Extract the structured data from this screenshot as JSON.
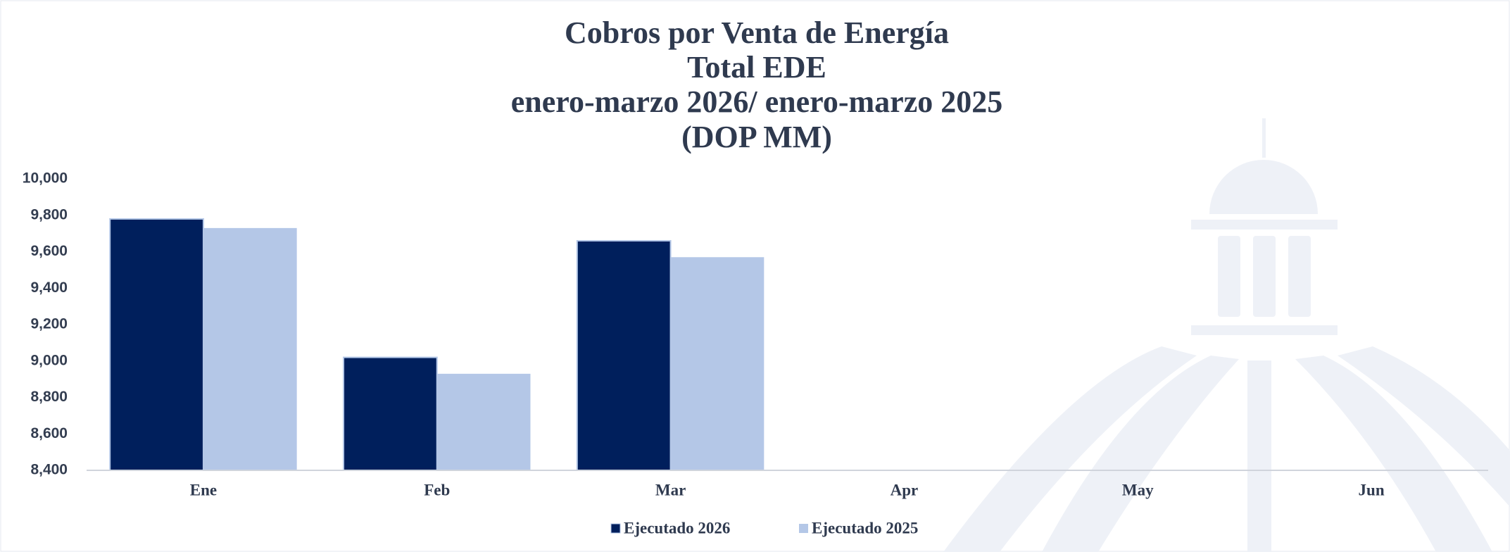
{
  "chart_data": {
    "type": "bar",
    "title": [
      "Cobros por Venta de Energía",
      "Total EDE",
      "enero-marzo 2026/ enero-marzo 2025",
      "(DOP MM)"
    ],
    "categories": [
      "Ene",
      "Feb",
      "Mar",
      "Apr",
      "May",
      "Jun"
    ],
    "series": [
      {
        "name": "Ejecutado 2026",
        "color": "#001f5c",
        "values": [
          9780,
          9020,
          9660,
          null,
          null,
          null
        ]
      },
      {
        "name": "Ejecutado 2025",
        "color": "#b4c7e7",
        "values": [
          9730,
          8930,
          9570,
          null,
          null,
          null
        ]
      }
    ],
    "ylim": [
      8400,
      10000
    ],
    "yticks": [
      {
        "value": 8400,
        "label": "8,400"
      },
      {
        "value": 8600,
        "label": "8,600"
      },
      {
        "value": 8800,
        "label": "8,800"
      },
      {
        "value": 9000,
        "label": "9,000"
      },
      {
        "value": 9200,
        "label": "9,200"
      },
      {
        "value": 9400,
        "label": "9,400"
      },
      {
        "value": 9600,
        "label": "9,600"
      },
      {
        "value": 9800,
        "label": "9,800"
      },
      {
        "value": 10000,
        "label": "10,000"
      }
    ],
    "grid": false,
    "legend": "bottom"
  }
}
